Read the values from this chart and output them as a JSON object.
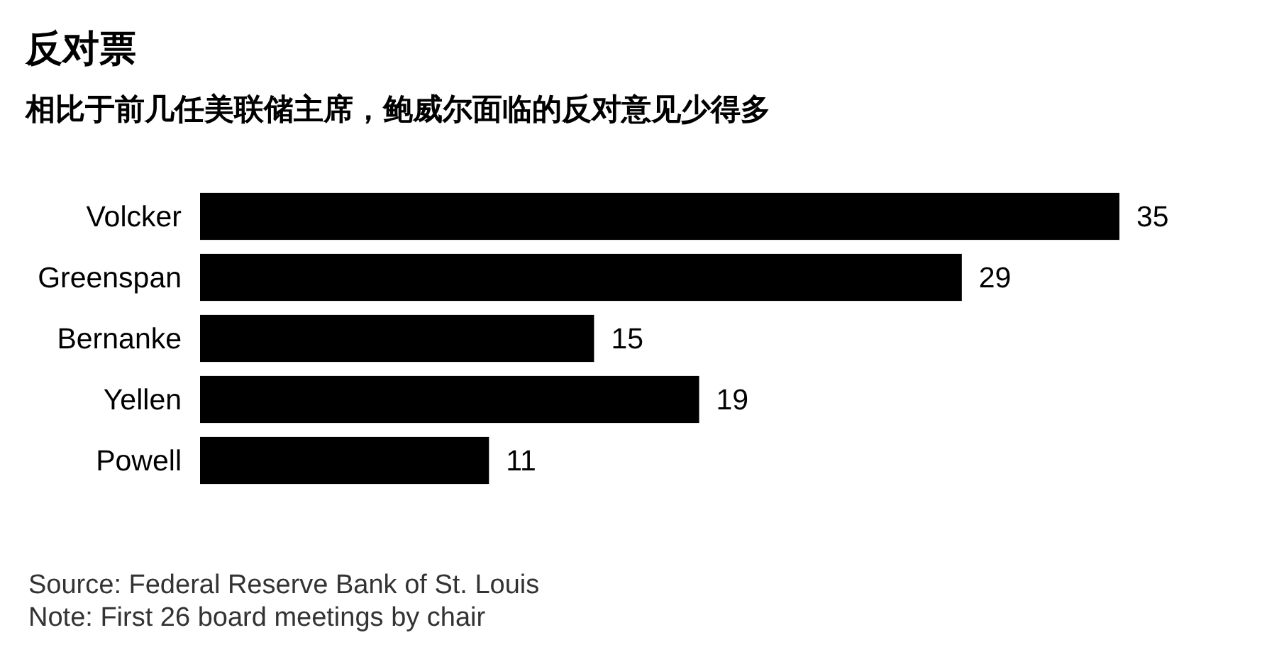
{
  "chart_data": {
    "type": "bar",
    "orientation": "horizontal",
    "title": "反对票",
    "subtitle": "相比于前几任美联储主席，鲍威尔面临的反对意见少得多",
    "categories": [
      "Volcker",
      "Greenspan",
      "Bernanke",
      "Yellen",
      "Powell"
    ],
    "values": [
      35,
      29,
      15,
      19,
      11
    ],
    "color": "#000000",
    "data_labels": true,
    "annotations": [
      "Source: Federal Reserve Bank of St. Louis",
      "Note: First 26 board meetings by chair"
    ]
  }
}
